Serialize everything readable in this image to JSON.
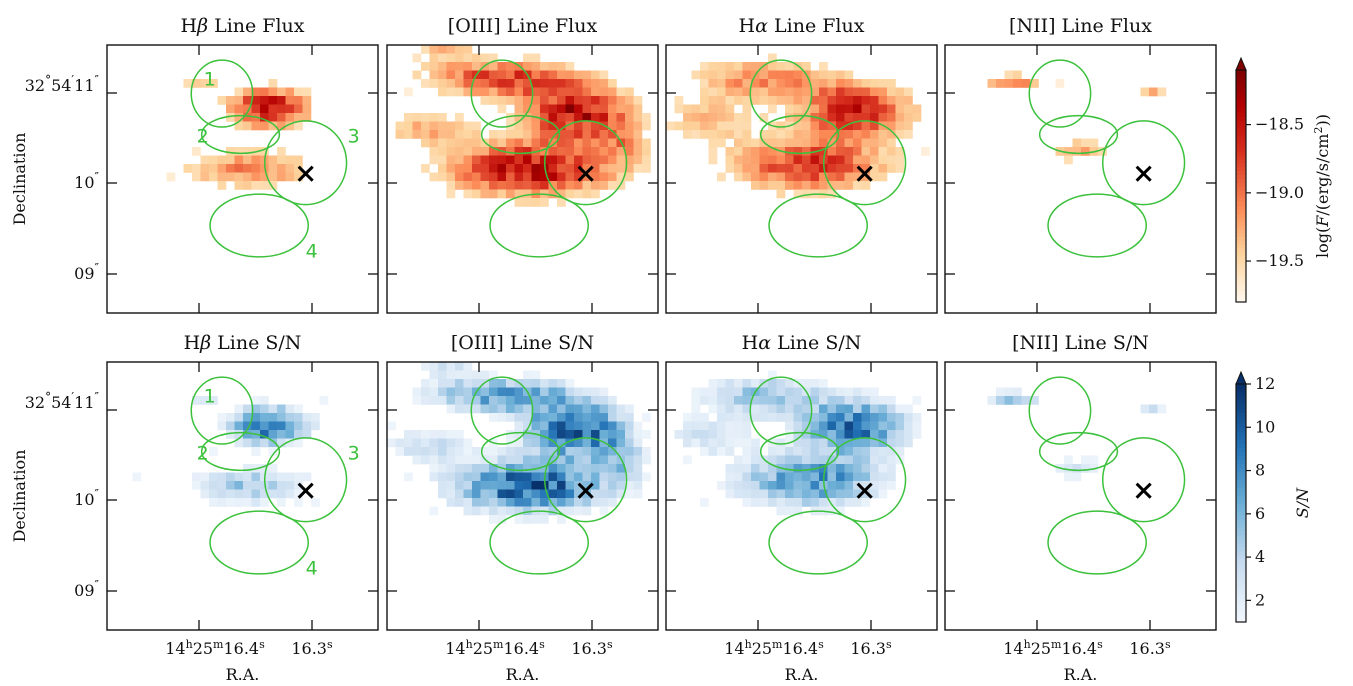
{
  "chart_data": {
    "type": "heatmap",
    "layout": "2 rows x 4 columns of sky maps",
    "xlabel": "R.A.",
    "ylabel": "Declination",
    "x_tick_labels": [
      "14h25m16.4s",
      "16.3s"
    ],
    "y_tick_labels": [
      "32°54′11″",
      "10″",
      "09″"
    ],
    "x_tick_parts": {
      "major": {
        "hh": "14",
        "h": "h",
        "mm": "25",
        "m": "m",
        "ss": "16.4",
        "s": "s"
      },
      "minor": {
        "ss": "16.3",
        "s": "s"
      }
    },
    "y_tick_parts": {
      "top": {
        "deg": "32",
        "deg_sym": "°",
        "arcmin": "54",
        "arcmin_sym": "′",
        "arcsec": "11",
        "arcsec_sym": "″"
      },
      "mid": {
        "arcsec": "10",
        "arcsec_sym": "″"
      },
      "low": {
        "arcsec": "09",
        "arcsec_sym": "″"
      }
    },
    "panels": [
      {
        "row": 0,
        "col": 0,
        "line": "Hβ",
        "quantity": "Line Flux",
        "title": "Hβ Line Flux",
        "title_parts": [
          "H",
          "β",
          " Line Flux"
        ]
      },
      {
        "row": 0,
        "col": 1,
        "line": "[OIII]",
        "quantity": "Line Flux",
        "title": "[OIII] Line Flux",
        "title_parts": [
          "[OIII]",
          "",
          " Line Flux"
        ]
      },
      {
        "row": 0,
        "col": 2,
        "line": "Hα",
        "quantity": "Line Flux",
        "title": "Hα Line Flux",
        "title_parts": [
          "H",
          "α",
          " Line Flux"
        ]
      },
      {
        "row": 0,
        "col": 3,
        "line": "[NII]",
        "quantity": "Line Flux",
        "title": "[NII] Line Flux",
        "title_parts": [
          "[NII]",
          "",
          " Line Flux"
        ]
      },
      {
        "row": 1,
        "col": 0,
        "line": "Hβ",
        "quantity": "Line S/N",
        "title": "Hβ Line S/N",
        "title_parts": [
          "H",
          "β",
          " Line S/N"
        ]
      },
      {
        "row": 1,
        "col": 1,
        "line": "[OIII]",
        "quantity": "Line S/N",
        "title": "[OIII] Line S/N",
        "title_parts": [
          "[OIII]",
          "",
          " Line S/N"
        ]
      },
      {
        "row": 1,
        "col": 2,
        "line": "Hα",
        "quantity": "Line S/N",
        "title": "Hα Line S/N",
        "title_parts": [
          "H",
          "α",
          " Line S/N"
        ]
      },
      {
        "row": 1,
        "col": 3,
        "line": "[NII]",
        "quantity": "Line S/N",
        "title": "[NII] Line S/N",
        "title_parts": [
          "[NII]",
          "",
          " Line S/N"
        ]
      }
    ],
    "flux_colorbar": {
      "label": "log(F/(erg/s/cm²))",
      "label_parts": [
        "log(",
        "F",
        "/(erg/s/cm",
        "2",
        "))"
      ],
      "colormap": "OrRd",
      "range": [
        -19.8,
        -18.1
      ],
      "ticks": [
        -18.5,
        -19.0,
        -19.5
      ],
      "tick_labels": [
        "−18.5",
        "−19.0",
        "−19.5"
      ],
      "extend": "max"
    },
    "sn_colorbar": {
      "label": "S/N",
      "colormap": "Blues",
      "range": [
        1,
        12
      ],
      "ticks": [
        2,
        4,
        6,
        8,
        10,
        12
      ],
      "tick_labels": [
        "2",
        "4",
        "6",
        "8",
        "10",
        "12"
      ],
      "extend": "max"
    },
    "regions": [
      {
        "label": "1",
        "ra_offset_arcsec": -0.45,
        "dec_offset_arcsec": 1.5,
        "rx_arcsec": 0.3,
        "ry_arcsec": 0.32
      },
      {
        "label": "2",
        "ra_offset_arcsec": -0.35,
        "dec_offset_arcsec": 1.05,
        "rx_arcsec": 0.38,
        "ry_arcsec": 0.18
      },
      {
        "label": "3",
        "ra_offset_arcsec": 0.0,
        "dec_offset_arcsec": 0.74,
        "rx_arcsec": 0.4,
        "ry_arcsec": 0.4
      },
      {
        "label": "4",
        "ra_offset_arcsec": -0.25,
        "dec_offset_arcsec": 0.05,
        "rx_arcsec": 0.48,
        "ry_arcsec": 0.3
      }
    ],
    "marker": {
      "symbol": "×",
      "ra_offset_arcsec": 0.0,
      "dec_offset_arcsec": 0.62
    },
    "region_color": "#3cc13c",
    "emission_blobs": {
      "Hβ": [
        [
          -0.2,
          0.72,
          0.22,
          0.22,
          1.0
        ],
        [
          -0.3,
          0.05,
          0.35,
          0.22,
          0.55
        ],
        [
          -0.55,
          1.02,
          0.12,
          0.08,
          0.35
        ]
      ],
      "[OIII]": [
        [
          -0.05,
          0.68,
          0.28,
          0.3,
          1.0
        ],
        [
          -0.3,
          0.05,
          0.45,
          0.3,
          1.0
        ],
        [
          -0.45,
          1.05,
          0.4,
          0.2,
          0.75
        ],
        [
          -0.75,
          1.5,
          0.18,
          0.25,
          0.45
        ],
        [
          -0.85,
          0.5,
          0.25,
          0.2,
          0.4
        ],
        [
          0.2,
          0.35,
          0.15,
          0.25,
          0.35
        ]
      ],
      "Hα": [
        [
          -0.05,
          0.7,
          0.3,
          0.3,
          0.9
        ],
        [
          -0.3,
          0.1,
          0.42,
          0.3,
          0.8
        ],
        [
          -0.55,
          1.05,
          0.38,
          0.22,
          0.55
        ],
        [
          -0.8,
          1.6,
          0.12,
          0.2,
          0.5
        ],
        [
          -0.85,
          0.6,
          0.3,
          0.25,
          0.35
        ]
      ],
      "[NII]": [
        [
          -0.7,
          1.0,
          0.15,
          0.1,
          0.55
        ],
        [
          -0.35,
          0.25,
          0.15,
          0.12,
          0.45
        ],
        [
          0.05,
          0.9,
          0.06,
          0.06,
          0.5
        ]
      ]
    }
  }
}
